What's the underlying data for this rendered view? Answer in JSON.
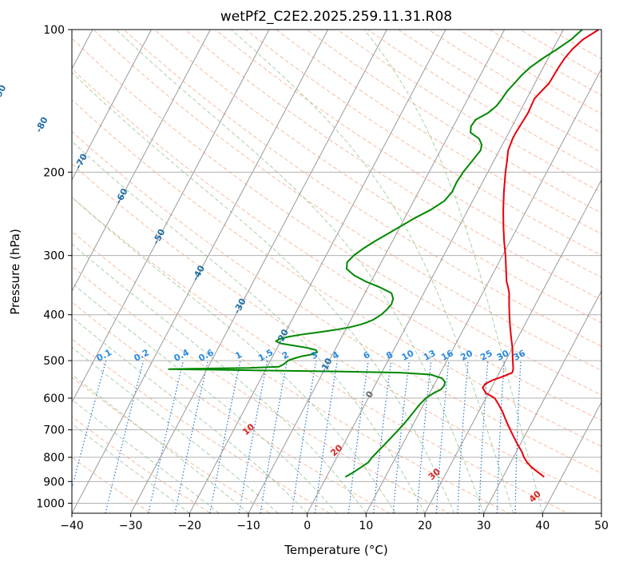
{
  "chart_data": {
    "type": "line",
    "title": "wetPf2_C2E2.2025.259.11.31.R08",
    "xlabel": "Temperature (°C)",
    "ylabel": "Pressure (hPa)",
    "xlim": [
      -40,
      50
    ],
    "ylim": [
      1050,
      100
    ],
    "y_scale": "log",
    "x_ticks": [
      -40,
      -30,
      -20,
      -10,
      0,
      10,
      20,
      30,
      40,
      50
    ],
    "x_tick_labels": [
      "−40",
      "−30",
      "−20",
      "−10",
      "0",
      "10",
      "20",
      "30",
      "40",
      "50"
    ],
    "y_ticks": [
      1000,
      900,
      800,
      700,
      600,
      500,
      400,
      300,
      200,
      100
    ],
    "y_tick_labels": [
      "1000",
      "900",
      "800",
      "700",
      "600",
      "500",
      "400",
      "300",
      "200",
      "100"
    ],
    "grid": true,
    "colors": {
      "temperature": "#e8000b",
      "dewpoint": "#008800",
      "isotherm": "#999999",
      "dry_adiabat": "#f4a582",
      "moist_adiabat": "#92c592",
      "mixing_ratio": "#1f77d4",
      "isotherm_label": "#1f6fa8",
      "mixing_label": "#2a8be0",
      "theta_label": "#d62728"
    },
    "series": [
      {
        "name": "Temperature",
        "pressure": [
          880,
          860,
          840,
          820,
          800,
          780,
          760,
          740,
          720,
          700,
          680,
          660,
          640,
          620,
          600,
          585,
          570,
          560,
          550,
          540,
          530,
          520,
          510,
          500,
          490,
          480,
          470,
          460,
          450,
          440,
          420,
          400,
          380,
          360,
          350,
          340,
          320,
          300,
          280,
          260,
          240,
          220,
          200,
          190,
          180,
          170,
          165,
          160,
          150,
          145,
          140,
          135,
          130,
          125,
          120,
          115,
          110,
          105,
          100
        ],
        "values": [
          37,
          35.5,
          34,
          32.8,
          31.8,
          31,
          30,
          29,
          28,
          27,
          26,
          25,
          24,
          22.8,
          21.5,
          19.5,
          18.5,
          18.6,
          19.5,
          21,
          22.2,
          22,
          21.6,
          21.2,
          20.8,
          20.4,
          20,
          19.5,
          19,
          18.5,
          17.5,
          16.5,
          15.5,
          14.5,
          13.8,
          13,
          11.8,
          10.5,
          9,
          7.5,
          6,
          4.5,
          3,
          2.3,
          1.5,
          1.2,
          1.2,
          1.3,
          1.5,
          1.4,
          1.3,
          1.8,
          2.4,
          2.5,
          2.6,
          2.8,
          3.3,
          4.2,
          6
        ]
      },
      {
        "name": "Dewpoint",
        "pressure": [
          880,
          860,
          840,
          820,
          800,
          780,
          760,
          740,
          720,
          700,
          680,
          660,
          640,
          620,
          600,
          585,
          575,
          565,
          555,
          545,
          535,
          530,
          527,
          524,
          521,
          518,
          515,
          510,
          505,
          500,
          495,
          490,
          485,
          480,
          475,
          470,
          465,
          460,
          455,
          450,
          445,
          440,
          435,
          430,
          425,
          420,
          415,
          410,
          400,
          390,
          380,
          370,
          360,
          350,
          340,
          330,
          320,
          310,
          300,
          290,
          280,
          270,
          260,
          250,
          240,
          230,
          220,
          210,
          200,
          190,
          180,
          175,
          170,
          165,
          160,
          155,
          150,
          145,
          140,
          135,
          130,
          125,
          120,
          115,
          110,
          105,
          100
        ],
        "values": [
          3.2,
          4.2,
          5.0,
          5.8,
          6.0,
          6.4,
          6.8,
          7.2,
          7.6,
          8.0,
          8.4,
          8.7,
          9.0,
          9.3,
          9.8,
          10.7,
          11.6,
          11.8,
          11.6,
          10.8,
          8.5,
          3.0,
          -8.0,
          -22.0,
          -36.5,
          -23.0,
          -18.0,
          -17.5,
          -17.2,
          -17.0,
          -16.2,
          -15.2,
          -13.5,
          -12.8,
          -13.2,
          -14.8,
          -17.3,
          -19.8,
          -20.8,
          -20.4,
          -19.0,
          -16.8,
          -14.0,
          -11.5,
          -9.5,
          -8.0,
          -7.0,
          -6.2,
          -5.3,
          -4.8,
          -4.5,
          -4.7,
          -5.5,
          -8.0,
          -11.0,
          -13.5,
          -15.3,
          -15.8,
          -15.3,
          -14.3,
          -13.0,
          -11.5,
          -9.9,
          -8.3,
          -6.3,
          -4.8,
          -4.3,
          -4.4,
          -4.2,
          -3.7,
          -3.2,
          -3.5,
          -4.5,
          -6.5,
          -7.0,
          -6.8,
          -5.3,
          -4.5,
          -4.2,
          -4.0,
          -3.5,
          -3.0,
          -2.2,
          -0.9,
          0.7,
          2.2,
          3.2
        ]
      }
    ],
    "isotherm_labels": [
      {
        "text": "-100",
        "t": -100,
        "p": 120
      },
      {
        "text": "-90",
        "t": -90,
        "p": 136
      },
      {
        "text": "-80",
        "t": -80,
        "p": 159
      },
      {
        "text": "-70",
        "t": -70,
        "p": 190
      },
      {
        "text": "-60",
        "t": -60,
        "p": 225
      },
      {
        "text": "-50",
        "t": -50,
        "p": 274
      },
      {
        "text": "-40",
        "t": -40,
        "p": 327
      },
      {
        "text": "-30",
        "t": -30,
        "p": 384
      },
      {
        "text": "-20",
        "t": -20,
        "p": 446
      },
      {
        "text": "-10",
        "t": -10,
        "p": 513
      },
      {
        "text": "0",
        "t": 0,
        "p": 590
      }
    ],
    "mixing_ratio_labels": [
      "0.1",
      "0.2",
      "0.4",
      "0.6",
      "1",
      "1.5",
      "2",
      "3",
      "4",
      "6",
      "8",
      "10",
      "13",
      "16",
      "20",
      "25",
      "30",
      "36"
    ],
    "theta_labels": [
      {
        "text": "10",
        "t": 10,
        "p": 700
      },
      {
        "text": "20",
        "t": 20,
        "p": 775
      },
      {
        "text": "30",
        "t": 30,
        "p": 870
      },
      {
        "text": "40",
        "t": 40,
        "p": 970
      }
    ]
  }
}
